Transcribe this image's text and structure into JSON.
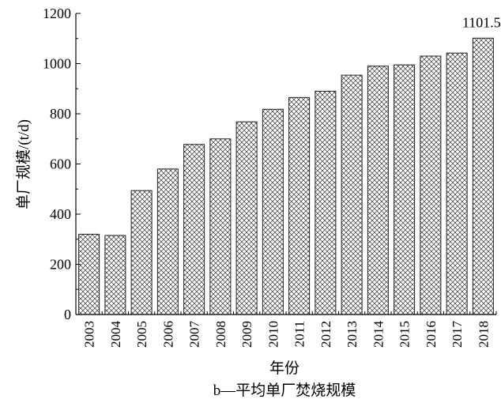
{
  "chart_data": {
    "type": "bar",
    "title": "",
    "caption": "b—平均单厂焚烧规模",
    "xlabel": "年份",
    "ylabel": "单厂规模/(t/d)",
    "ylim": [
      0,
      1200
    ],
    "yticks": [
      0,
      200,
      400,
      600,
      800,
      1000,
      1200
    ],
    "grid": false,
    "pattern": "crosshatch",
    "categories": [
      "2003",
      "2004",
      "2005",
      "2006",
      "2007",
      "2008",
      "2009",
      "2010",
      "2011",
      "2012",
      "2013",
      "2014",
      "2015",
      "2016",
      "2017",
      "2018"
    ],
    "values": [
      320,
      315,
      494,
      580,
      678,
      700,
      768,
      818,
      865,
      890,
      954,
      990,
      995,
      1030,
      1042,
      1101.5
    ],
    "annotations": [
      {
        "category": "2018",
        "text": "1101.5"
      }
    ]
  }
}
